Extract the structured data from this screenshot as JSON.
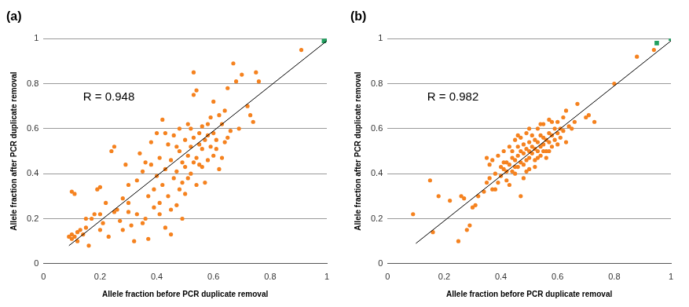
{
  "chart_data": [
    {
      "type": "scatter",
      "title": "(a)",
      "x_label": "Allele fraction before PCR duplicate removal",
      "y_label": "Allele fraction after PCR duplicate removal",
      "annotation": "R = 0.948",
      "xlim": [
        0,
        1
      ],
      "xticks": [
        0,
        0.2,
        0.4,
        0.6,
        0.8,
        1
      ],
      "ylim": [
        0,
        1
      ],
      "yticks": [
        0,
        0.2,
        0.4,
        0.6,
        0.8,
        1
      ],
      "grid": true,
      "series": [
        {
          "type": "scatter",
          "color": "#f5821f",
          "marker": "circle",
          "x": [
            0.09,
            0.1,
            0.1,
            0.11,
            0.12,
            0.1,
            0.11,
            0.12,
            0.13,
            0.14,
            0.15,
            0.16,
            0.17,
            0.18,
            0.19,
            0.2,
            0.2,
            0.21,
            0.22,
            0.23,
            0.24,
            0.25,
            0.25,
            0.26,
            0.27,
            0.28,
            0.29,
            0.3,
            0.3,
            0.31,
            0.32,
            0.33,
            0.33,
            0.34,
            0.35,
            0.35,
            0.36,
            0.37,
            0.37,
            0.38,
            0.38,
            0.39,
            0.4,
            0.4,
            0.41,
            0.41,
            0.42,
            0.42,
            0.43,
            0.43,
            0.44,
            0.44,
            0.45,
            0.45,
            0.46,
            0.46,
            0.47,
            0.47,
            0.48,
            0.48,
            0.49,
            0.49,
            0.5,
            0.5,
            0.5,
            0.51,
            0.51,
            0.52,
            0.52,
            0.53,
            0.53,
            0.53,
            0.54,
            0.54,
            0.54,
            0.55,
            0.55,
            0.55,
            0.56,
            0.56,
            0.57,
            0.57,
            0.58,
            0.58,
            0.59,
            0.59,
            0.6,
            0.6,
            0.6,
            0.61,
            0.62,
            0.62,
            0.63,
            0.64,
            0.64,
            0.65,
            0.66,
            0.67,
            0.68,
            0.69,
            0.7,
            0.72,
            0.73,
            0.74,
            0.75,
            0.76,
            0.91,
            0.3,
            0.36,
            0.39,
            0.41,
            0.43,
            0.45,
            0.47,
            0.49,
            0.51,
            0.53,
            0.56,
            0.58,
            0.61,
            0.63,
            0.65,
            0.2,
            0.15,
            0.28,
            0.52,
            0.48
          ],
          "y": [
            0.12,
            0.11,
            0.13,
            0.12,
            0.1,
            0.32,
            0.31,
            0.14,
            0.15,
            0.13,
            0.16,
            0.08,
            0.2,
            0.22,
            0.33,
            0.34,
            0.22,
            0.18,
            0.27,
            0.12,
            0.5,
            0.52,
            0.23,
            0.24,
            0.19,
            0.29,
            0.44,
            0.35,
            0.27,
            0.17,
            0.1,
            0.37,
            0.22,
            0.49,
            0.18,
            0.41,
            0.2,
            0.11,
            0.3,
            0.54,
            0.44,
            0.25,
            0.39,
            0.58,
            0.22,
            0.47,
            0.64,
            0.35,
            0.16,
            0.42,
            0.53,
            0.3,
            0.13,
            0.46,
            0.38,
            0.57,
            0.41,
            0.26,
            0.5,
            0.6,
            0.36,
            0.45,
            0.55,
            0.31,
            0.43,
            0.62,
            0.48,
            0.52,
            0.4,
            0.85,
            0.75,
            0.56,
            0.77,
            0.35,
            0.47,
            0.58,
            0.53,
            0.44,
            0.61,
            0.51,
            0.36,
            0.55,
            0.46,
            0.57,
            0.65,
            0.52,
            0.58,
            0.72,
            0.48,
            0.55,
            0.66,
            0.42,
            0.62,
            0.68,
            0.54,
            0.78,
            0.59,
            0.89,
            0.81,
            0.6,
            0.84,
            0.7,
            0.66,
            0.63,
            0.85,
            0.81,
            0.95,
            0.23,
            0.45,
            0.33,
            0.27,
            0.58,
            0.24,
            0.52,
            0.2,
            0.38,
            0.45,
            0.43,
            0.62,
            0.51,
            0.47,
            0.56,
            0.15,
            0.2,
            0.15,
            0.6,
            0.33
          ]
        },
        {
          "type": "scatter",
          "color": "#22a060",
          "marker": "square",
          "x": [
            0.99,
            1
          ],
          "y": [
            0.99,
            1
          ]
        },
        {
          "type": "line",
          "color": "#000000",
          "line_style": "solid",
          "x": [
            0.09,
            1
          ],
          "y": [
            0.08,
            0.99
          ]
        }
      ]
    },
    {
      "type": "scatter",
      "title": "(b)",
      "x_label": "Allele fraction before PCR duplicate removal",
      "y_label": "Allele fraction after PCR duplicate removal",
      "annotation": "R = 0.982",
      "xlim": [
        0,
        1
      ],
      "xticks": [
        0,
        0.2,
        0.4,
        0.6,
        0.8,
        1
      ],
      "ylim": [
        0,
        1
      ],
      "yticks": [
        0,
        0.2,
        0.4,
        0.6,
        0.8,
        1
      ],
      "grid": true,
      "series": [
        {
          "type": "scatter",
          "color": "#f5821f",
          "marker": "circle",
          "x": [
            0.09,
            0.15,
            0.16,
            0.18,
            0.22,
            0.25,
            0.26,
            0.27,
            0.28,
            0.29,
            0.3,
            0.31,
            0.32,
            0.34,
            0.35,
            0.35,
            0.36,
            0.37,
            0.37,
            0.38,
            0.39,
            0.4,
            0.4,
            0.41,
            0.41,
            0.42,
            0.42,
            0.43,
            0.43,
            0.43,
            0.44,
            0.44,
            0.45,
            0.45,
            0.45,
            0.46,
            0.46,
            0.46,
            0.47,
            0.47,
            0.47,
            0.47,
            0.48,
            0.48,
            0.48,
            0.49,
            0.49,
            0.49,
            0.5,
            0.5,
            0.5,
            0.5,
            0.51,
            0.51,
            0.51,
            0.52,
            0.52,
            0.52,
            0.53,
            0.53,
            0.53,
            0.54,
            0.54,
            0.54,
            0.55,
            0.55,
            0.55,
            0.56,
            0.56,
            0.57,
            0.57,
            0.57,
            0.58,
            0.58,
            0.59,
            0.59,
            0.6,
            0.6,
            0.61,
            0.61,
            0.62,
            0.63,
            0.63,
            0.64,
            0.65,
            0.66,
            0.67,
            0.7,
            0.71,
            0.73,
            0.8,
            0.88,
            0.94,
            0.36,
            0.39,
            0.42,
            0.44,
            0.46,
            0.48,
            0.5,
            0.52,
            0.54,
            0.56,
            0.58,
            0.6,
            0.62,
            0.38,
            0.41,
            0.45,
            0.49,
            0.53,
            0.55,
            0.57
          ],
          "y": [
            0.22,
            0.37,
            0.14,
            0.3,
            0.28,
            0.1,
            0.3,
            0.29,
            0.15,
            0.17,
            0.25,
            0.26,
            0.3,
            0.32,
            0.47,
            0.36,
            0.38,
            0.33,
            0.46,
            0.4,
            0.36,
            0.43,
            0.39,
            0.42,
            0.5,
            0.41,
            0.45,
            0.44,
            0.35,
            0.52,
            0.47,
            0.41,
            0.46,
            0.55,
            0.4,
            0.48,
            0.43,
            0.52,
            0.5,
            0.45,
            0.56,
            0.3,
            0.49,
            0.44,
            0.53,
            0.51,
            0.46,
            0.58,
            0.5,
            0.47,
            0.54,
            0.42,
            0.52,
            0.49,
            0.57,
            0.51,
            0.55,
            0.46,
            0.54,
            0.5,
            0.6,
            0.52,
            0.57,
            0.48,
            0.56,
            0.53,
            0.62,
            0.55,
            0.5,
            0.58,
            0.54,
            0.64,
            0.57,
            0.52,
            0.6,
            0.55,
            0.58,
            0.63,
            0.56,
            0.6,
            0.59,
            0.54,
            0.68,
            0.61,
            0.6,
            0.63,
            0.71,
            0.65,
            0.66,
            0.63,
            0.8,
            0.92,
            0.95,
            0.44,
            0.48,
            0.37,
            0.5,
            0.57,
            0.38,
            0.6,
            0.43,
            0.62,
            0.47,
            0.63,
            0.53,
            0.65,
            0.33,
            0.45,
            0.43,
            0.41,
            0.47,
            0.5,
            0.5
          ]
        },
        {
          "type": "scatter",
          "color": "#22a060",
          "marker": "square",
          "x": [
            0.95,
            1
          ],
          "y": [
            0.98,
            1
          ]
        },
        {
          "type": "line",
          "color": "#000000",
          "line_style": "solid",
          "x": [
            0.1,
            1
          ],
          "y": [
            0.09,
            0.99
          ]
        }
      ]
    }
  ]
}
